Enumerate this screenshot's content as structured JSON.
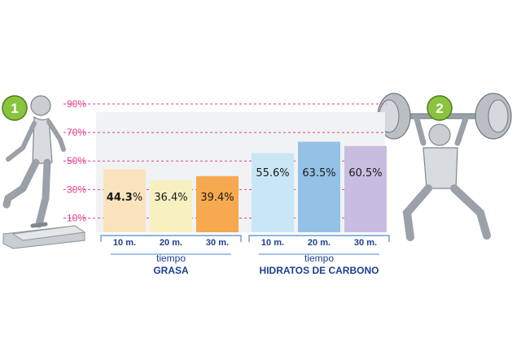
{
  "chart_data": {
    "type": "bar",
    "ylim": [
      0,
      90
    ],
    "y_ticks": [
      "90%",
      "70%",
      "50%",
      "30%",
      "10%"
    ],
    "y_tick_values": [
      90,
      70,
      50,
      30,
      10
    ],
    "grid": "dashed horizontal",
    "categories": [
      "10 m.",
      "20 m.",
      "30 m.",
      "10 m.",
      "20 m.",
      "30 m."
    ],
    "values": [
      44.3,
      36.4,
      39.4,
      55.6,
      63.5,
      60.5
    ],
    "value_labels": [
      "44.3%",
      "36.4%",
      "39.4%",
      "55.6%",
      "63.5%",
      "60.5%"
    ],
    "groups": [
      {
        "subtitle": "tiempo",
        "title": "GRASA",
        "indices": [
          0,
          1,
          2
        ]
      },
      {
        "subtitle": "tiempo",
        "title": "HIDRATOS DE CARBONO",
        "indices": [
          3,
          4,
          5
        ]
      }
    ],
    "bar_colors": [
      "#fbe3bd",
      "#f7f1c0",
      "#f6a94f",
      "#c9e6f5",
      "#94c2e6",
      "#c8bde0"
    ]
  },
  "badges": [
    "1",
    "2"
  ],
  "colors": {
    "grid": "#e0418b",
    "axis_text": "#1d3f8f",
    "badge": "#8ac43f"
  },
  "icons": [
    "step-aerobics-woman-icon",
    "weightlifter-woman-icon"
  ]
}
